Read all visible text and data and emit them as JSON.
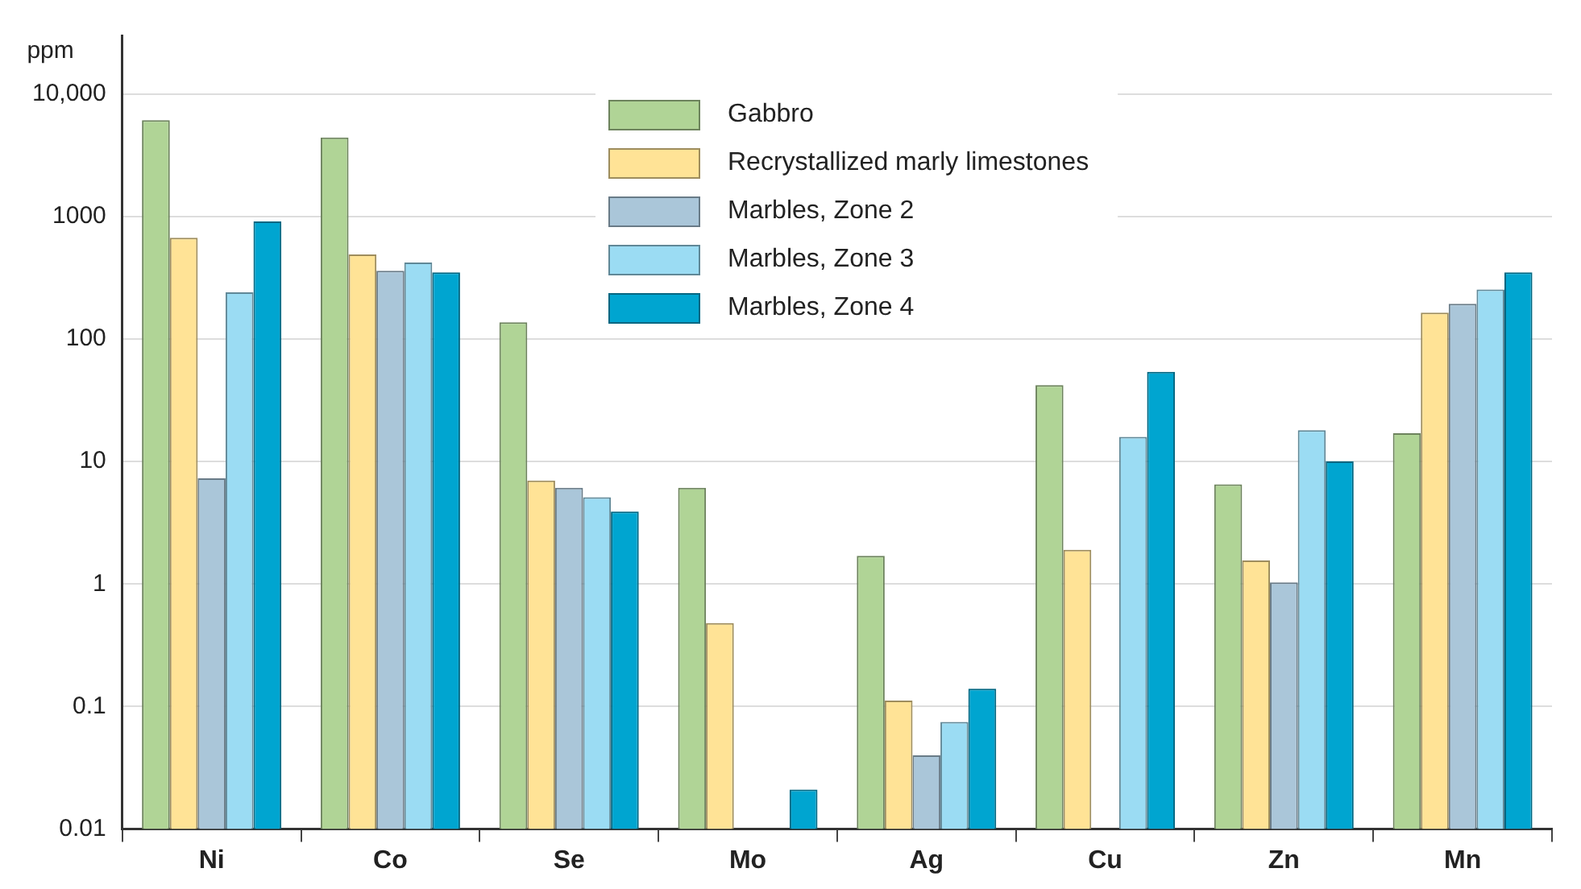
{
  "chart_data": {
    "type": "bar",
    "ylabel": "ppm",
    "categories": [
      "Ni",
      "Co",
      "Se",
      "Mo",
      "Ag",
      "Cu",
      "Zn",
      "Mn"
    ],
    "series": [
      {
        "name": "Gabbro",
        "color": "#b0d496",
        "values": [
          6100,
          4400,
          137,
          6.1,
          1.7,
          42,
          6.5,
          17
        ]
      },
      {
        "name": "Recrystallized marly limestones",
        "color": "#ffe396",
        "values": [
          670,
          490,
          7.0,
          0.48,
          0.112,
          1.9,
          1.56,
          164
        ]
      },
      {
        "name": "Marbles, Zone 2",
        "color": "#aac6d9",
        "values": [
          7.3,
          360,
          6.1,
          null,
          0.04,
          null,
          1.03,
          194
        ]
      },
      {
        "name": "Marbles, Zone 3",
        "color": "#9bdcf3",
        "values": [
          240,
          420,
          5.1,
          null,
          0.075,
          15.9,
          18,
          253
        ]
      },
      {
        "name": "Marbles, Zone 4",
        "color": "#00a5d0",
        "values": [
          910,
          350,
          3.9,
          0.021,
          0.14,
          54,
          10,
          350
        ]
      }
    ],
    "log": true,
    "ylim": [
      0.01,
      30000
    ],
    "yticks": [
      0.01,
      0.1,
      1,
      10,
      100,
      1000,
      {
        "value": 10000,
        "label": "10,000"
      }
    ],
    "grid": "y",
    "legend": "top"
  }
}
